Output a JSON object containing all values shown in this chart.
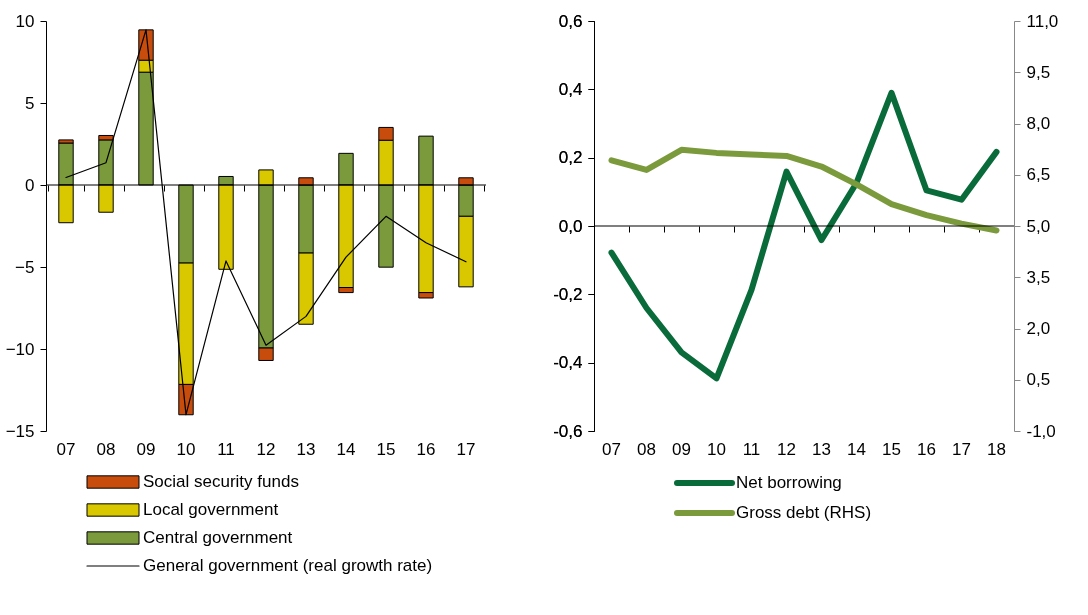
{
  "chart_data": [
    {
      "type": "bar",
      "stacked": true,
      "categories": [
        "07",
        "08",
        "09",
        "10",
        "11",
        "12",
        "13",
        "14",
        "15",
        "16",
        "17"
      ],
      "ylim": [
        -15,
        10
      ],
      "yticks": [
        -15,
        -10,
        -5,
        0,
        5,
        10
      ],
      "grid": false,
      "ref_lines": [
        {
          "axis": "y",
          "value": 0
        }
      ],
      "legend": "bottom",
      "series": [
        {
          "name": "Central government",
          "color": "#7a9a3c",
          "values": [
            2.56,
            2.75,
            6.88,
            -4.76,
            0.52,
            -9.94,
            -4.15,
            1.93,
            -5.01,
            2.98,
            -1.91
          ]
        },
        {
          "name": "Local government",
          "color": "#d9c800",
          "values": [
            -2.3,
            -1.66,
            0.73,
            -7.4,
            -5.14,
            0.92,
            -4.34,
            -6.25,
            2.73,
            -6.56,
            -4.3
          ]
        },
        {
          "name": "Social security funds",
          "color": "#c84c0c",
          "values": [
            0.19,
            0.27,
            1.85,
            -1.85,
            null,
            -0.76,
            0.44,
            -0.31,
            0.78,
            -0.33,
            0.44
          ]
        },
        {
          "name": "General government (real growth rate)",
          "type": "line",
          "color": "#000000",
          "values": [
            0.46,
            1.36,
            9.46,
            -14.0,
            -4.63,
            -9.77,
            -8.01,
            -4.4,
            -1.91,
            -3.52,
            -4.68
          ]
        }
      ]
    },
    {
      "type": "line",
      "categories": [
        "07",
        "08",
        "09",
        "10",
        "11",
        "12",
        "13",
        "14",
        "15",
        "16",
        "17",
        "18"
      ],
      "ylim": [
        -0.6,
        0.6
      ],
      "yticks": [
        {
          "value": -0.6,
          "label": "-0,6"
        },
        {
          "value": -0.4,
          "label": "-0,4"
        },
        {
          "value": -0.2,
          "label": "-0,2"
        },
        {
          "value": 0,
          "label": "0,0"
        },
        {
          "value": 0.2,
          "label": "0,2"
        },
        {
          "value": 0.4,
          "label": "0,4"
        },
        {
          "value": 0.6,
          "label": "0,6"
        }
      ],
      "y2lim": [
        -1,
        11
      ],
      "y2ticks": [
        {
          "value": -1,
          "label": "-1,0"
        },
        {
          "value": 0.5,
          "label": "0,5"
        },
        {
          "value": 2,
          "label": "2,0"
        },
        {
          "value": 3.5,
          "label": "3,5"
        },
        {
          "value": 5,
          "label": "5,0"
        },
        {
          "value": 6.5,
          "label": "6,5"
        },
        {
          "value": 8,
          "label": "8,0"
        },
        {
          "value": 9.5,
          "label": "9,5"
        },
        {
          "value": 11,
          "label": "11,0"
        }
      ],
      "grid": false,
      "ref_lines": [
        {
          "axis": "y",
          "value": 0
        }
      ],
      "legend": "bottom",
      "series": [
        {
          "name": "Net borrowing",
          "color": "#0a6b3a",
          "values": [
            -0.078,
            -0.24,
            -0.37,
            -0.446,
            -0.187,
            0.159,
            -0.041,
            0.126,
            0.39,
            0.104,
            0.077,
            0.217
          ]
        },
        {
          "name": "Gross debt (RHS)",
          "axis": "y2",
          "color": "#7a9a3c",
          "values": [
            6.92,
            6.64,
            7.23,
            7.14,
            7.09,
            7.05,
            6.74,
            6.22,
            5.64,
            5.32,
            5.07,
            4.87
          ]
        }
      ]
    }
  ]
}
